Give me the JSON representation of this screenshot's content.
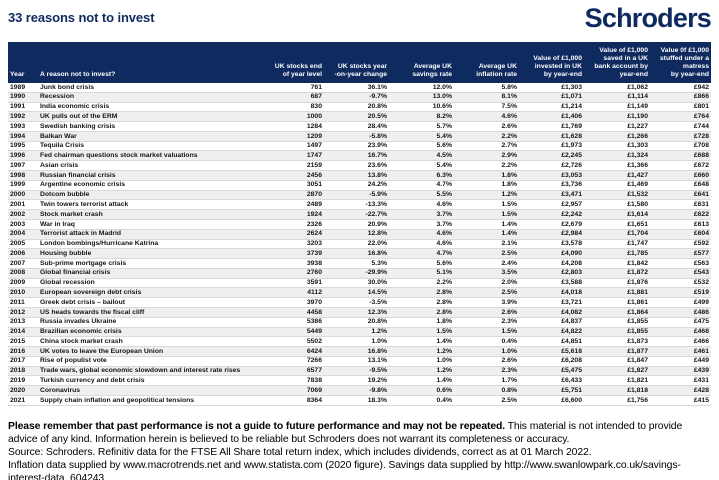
{
  "page": {
    "title": "33 reasons not to invest",
    "brand": "Schroders"
  },
  "colors": {
    "brand_navy": "#0e2a5e",
    "row_stripe": "#efefef",
    "header_text": "#ffffff"
  },
  "table": {
    "columns": [
      {
        "key": "year",
        "label": "Year"
      },
      {
        "key": "reason",
        "label": "A reason not to invest?"
      },
      {
        "key": "stocks_level",
        "label": "UK stocks end\nof year level"
      },
      {
        "key": "yoy_change",
        "label": "UK stocks year\n-on-year change"
      },
      {
        "key": "savings_rate",
        "label": "Average UK\nsavings rate"
      },
      {
        "key": "inflation_rate",
        "label": "Average UK\ninflation rate"
      },
      {
        "key": "invested",
        "label": "Value of £1,000\ninvested in UK\nby year-end"
      },
      {
        "key": "saved",
        "label": "Value of £1,000\nsaved in a UK\nbank account by\nyear-end"
      },
      {
        "key": "matress",
        "label": "Value 0f £1,000\nstuffed under a\nmatress\nby year-end"
      }
    ],
    "rows": [
      {
        "year": "1989",
        "reason": "Junk bond crisis",
        "stocks_level": "761",
        "yoy_change": "36.1%",
        "savings_rate": "12.0%",
        "inflation_rate": "5.8%",
        "invested": "£1,303",
        "saved": "£1,062",
        "matress": "£942"
      },
      {
        "year": "1990",
        "reason": "Recession",
        "stocks_level": "687",
        "yoy_change": "-9.7%",
        "savings_rate": "13.0%",
        "inflation_rate": "8.1%",
        "invested": "£1,071",
        "saved": "£1,114",
        "matress": "£866"
      },
      {
        "year": "1991",
        "reason": "India economic crisis",
        "stocks_level": "830",
        "yoy_change": "20.8%",
        "savings_rate": "10.6%",
        "inflation_rate": "7.5%",
        "invested": "£1,214",
        "saved": "£1,149",
        "matress": "£801"
      },
      {
        "year": "1992",
        "reason": "UK pulls out of the ERM",
        "stocks_level": "1000",
        "yoy_change": "20.5%",
        "savings_rate": "8.2%",
        "inflation_rate": "4.6%",
        "invested": "£1,406",
        "saved": "£1,190",
        "matress": "£764"
      },
      {
        "year": "1993",
        "reason": "Swedish banking crisis",
        "stocks_level": "1284",
        "yoy_change": "28.4%",
        "savings_rate": "5.7%",
        "inflation_rate": "2.6%",
        "invested": "£1,769",
        "saved": "£1,227",
        "matress": "£744"
      },
      {
        "year": "1994",
        "reason": "Balkan War",
        "stocks_level": "1209",
        "yoy_change": "-5.8%",
        "savings_rate": "5.4%",
        "inflation_rate": "2.2%",
        "invested": "£1,628",
        "saved": "£1,266",
        "matress": "£728"
      },
      {
        "year": "1995",
        "reason": "Tequila Crisis",
        "stocks_level": "1497",
        "yoy_change": "23.9%",
        "savings_rate": "5.6%",
        "inflation_rate": "2.7%",
        "invested": "£1,973",
        "saved": "£1,303",
        "matress": "£708"
      },
      {
        "year": "1996",
        "reason": "Fed chairman questions stock market valuations",
        "stocks_level": "1747",
        "yoy_change": "16.7%",
        "savings_rate": "4.5%",
        "inflation_rate": "2.9%",
        "invested": "£2,245",
        "saved": "£1,324",
        "matress": "£688"
      },
      {
        "year": "1997",
        "reason": "Asian crisis",
        "stocks_level": "2159",
        "yoy_change": "23.6%",
        "savings_rate": "5.4%",
        "inflation_rate": "2.2%",
        "invested": "£2,726",
        "saved": "£1,366",
        "matress": "£672"
      },
      {
        "year": "1998",
        "reason": "Russian financial crisis",
        "stocks_level": "2456",
        "yoy_change": "13.8%",
        "savings_rate": "6.3%",
        "inflation_rate": "1.8%",
        "invested": "£3,053",
        "saved": "£1,427",
        "matress": "£660"
      },
      {
        "year": "1999",
        "reason": "Argentine economic crisis",
        "stocks_level": "3051",
        "yoy_change": "24.2%",
        "savings_rate": "4.7%",
        "inflation_rate": "1.8%",
        "invested": "£3,736",
        "saved": "£1,469",
        "matress": "£648"
      },
      {
        "year": "2000",
        "reason": "Dotcom bubble",
        "stocks_level": "2870",
        "yoy_change": "-5.9%",
        "savings_rate": "5.5%",
        "inflation_rate": "1.2%",
        "invested": "£3,471",
        "saved": "£1,532",
        "matress": "£641"
      },
      {
        "year": "2001",
        "reason": "Twin towers terrorist attack",
        "stocks_level": "2489",
        "yoy_change": "-13.3%",
        "savings_rate": "4.6%",
        "inflation_rate": "1.5%",
        "invested": "£2,957",
        "saved": "£1,580",
        "matress": "£631"
      },
      {
        "year": "2002",
        "reason": "Stock market crash",
        "stocks_level": "1924",
        "yoy_change": "-22.7%",
        "savings_rate": "3.7%",
        "inflation_rate": "1.5%",
        "invested": "£2,242",
        "saved": "£1,614",
        "matress": "£622"
      },
      {
        "year": "2003",
        "reason": "War in Iraq",
        "stocks_level": "2326",
        "yoy_change": "20.9%",
        "savings_rate": "3.7%",
        "inflation_rate": "1.4%",
        "invested": "£2,679",
        "saved": "£1,651",
        "matress": "£613"
      },
      {
        "year": "2004",
        "reason": "Terrorist attack in Madrid",
        "stocks_level": "2624",
        "yoy_change": "12.8%",
        "savings_rate": "4.6%",
        "inflation_rate": "1.4%",
        "invested": "£2,984",
        "saved": "£1,704",
        "matress": "£604"
      },
      {
        "year": "2005",
        "reason": "London bombings/Hurricane Katrina",
        "stocks_level": "3203",
        "yoy_change": "22.0%",
        "savings_rate": "4.6%",
        "inflation_rate": "2.1%",
        "invested": "£3,578",
        "saved": "£1,747",
        "matress": "£592"
      },
      {
        "year": "2006",
        "reason": "Housing bubble",
        "stocks_level": "3739",
        "yoy_change": "16.8%",
        "savings_rate": "4.7%",
        "inflation_rate": "2.5%",
        "invested": "£4,090",
        "saved": "£1,785",
        "matress": "£577"
      },
      {
        "year": "2007",
        "reason": "Sub-prime mortgage crisis",
        "stocks_level": "3938",
        "yoy_change": "5.3%",
        "savings_rate": "5.6%",
        "inflation_rate": "2.4%",
        "invested": "£4,208",
        "saved": "£1,842",
        "matress": "£563"
      },
      {
        "year": "2008",
        "reason": "Global financial crisis",
        "stocks_level": "2760",
        "yoy_change": "-29.9%",
        "savings_rate": "5.1%",
        "inflation_rate": "3.5%",
        "invested": "£2,803",
        "saved": "£1,872",
        "matress": "£543"
      },
      {
        "year": "2009",
        "reason": "Global recession",
        "stocks_level": "3591",
        "yoy_change": "30.0%",
        "savings_rate": "2.2%",
        "inflation_rate": "2.0%",
        "invested": "£3,588",
        "saved": "£1,876",
        "matress": "£532"
      },
      {
        "year": "2010",
        "reason": "European sovereign debt crisis",
        "stocks_level": "4112",
        "yoy_change": "14.5%",
        "savings_rate": "2.8%",
        "inflation_rate": "2.5%",
        "invested": "£4,018",
        "saved": "£1,881",
        "matress": "£519"
      },
      {
        "year": "2011",
        "reason": "Greek debt crisis – bailout",
        "stocks_level": "3970",
        "yoy_change": "-3.5%",
        "savings_rate": "2.8%",
        "inflation_rate": "3.9%",
        "invested": "£3,721",
        "saved": "£1,861",
        "matress": "£499"
      },
      {
        "year": "2012",
        "reason": "US heads towards the fiscal cliff",
        "stocks_level": "4458",
        "yoy_change": "12.3%",
        "savings_rate": "2.8%",
        "inflation_rate": "2.6%",
        "invested": "£4,082",
        "saved": "£1,864",
        "matress": "£486"
      },
      {
        "year": "2013",
        "reason": "Russia invades Ukraine",
        "stocks_level": "5386",
        "yoy_change": "20.8%",
        "savings_rate": "1.8%",
        "inflation_rate": "2.3%",
        "invested": "£4,837",
        "saved": "£1,855",
        "matress": "£475"
      },
      {
        "year": "2014",
        "reason": "Brazilian economic crisis",
        "stocks_level": "5449",
        "yoy_change": "1.2%",
        "savings_rate": "1.5%",
        "inflation_rate": "1.5%",
        "invested": "£4,822",
        "saved": "£1,855",
        "matress": "£468"
      },
      {
        "year": "2015",
        "reason": "China stock market crash",
        "stocks_level": "5502",
        "yoy_change": "1.0%",
        "savings_rate": "1.4%",
        "inflation_rate": "0.4%",
        "invested": "£4,851",
        "saved": "£1,873",
        "matress": "£466"
      },
      {
        "year": "2016",
        "reason": "UK votes to leave the European Union",
        "stocks_level": "6424",
        "yoy_change": "16.8%",
        "savings_rate": "1.2%",
        "inflation_rate": "1.0%",
        "invested": "£5,618",
        "saved": "£1,877",
        "matress": "£461"
      },
      {
        "year": "2017",
        "reason": "Rise of populist vote",
        "stocks_level": "7266",
        "yoy_change": "13.1%",
        "savings_rate": "1.0%",
        "inflation_rate": "2.6%",
        "invested": "£6,208",
        "saved": "£1,847",
        "matress": "£449"
      },
      {
        "year": "2018",
        "reason": "Trade wars, global economic slowdown and interest rate rises",
        "stocks_level": "6577",
        "yoy_change": "-9.5%",
        "savings_rate": "1.2%",
        "inflation_rate": "2.3%",
        "invested": "£5,475",
        "saved": "£1,827",
        "matress": "£439"
      },
      {
        "year": "2019",
        "reason": "Turkish currency and debt crisis",
        "stocks_level": "7838",
        "yoy_change": "19.2%",
        "savings_rate": "1.4%",
        "inflation_rate": "1.7%",
        "invested": "£6,433",
        "saved": "£1,821",
        "matress": "£431"
      },
      {
        "year": "2020",
        "reason": "Coronavirus",
        "stocks_level": "7069",
        "yoy_change": "-9.8%",
        "savings_rate": "0.6%",
        "inflation_rate": "0.8%",
        "invested": "£5,751",
        "saved": "£1,818",
        "matress": "£428"
      },
      {
        "year": "2021",
        "reason": "Supply chain inflation and geopolitical tensions",
        "stocks_level": "8364",
        "yoy_change": "18.3%",
        "savings_rate": "0.4%",
        "inflation_rate": "2.5%",
        "invested": "£6,600",
        "saved": "£1,756",
        "matress": "£415"
      }
    ]
  },
  "footer": {
    "disclaimer_bold": "Please remember that past performance is not a guide to future performance and may not be repeated.",
    "disclaimer_rest": " This material is not intended to provide advice of any kind. Information herein is believed to be reliable but Schroders does not warrant its completeness or accuracy.",
    "source": "Source: Schroders. Refinitiv data for the FTSE All Share total return index, which includes dividends, correct as at 01 March 2022.",
    "data_credits": "Inflation data supplied by www.macrotrends.net and www.statista.com (2020 figure). Savings data supplied by http://www.swanlowpark.co.uk/savings-interest-data. 604243"
  }
}
